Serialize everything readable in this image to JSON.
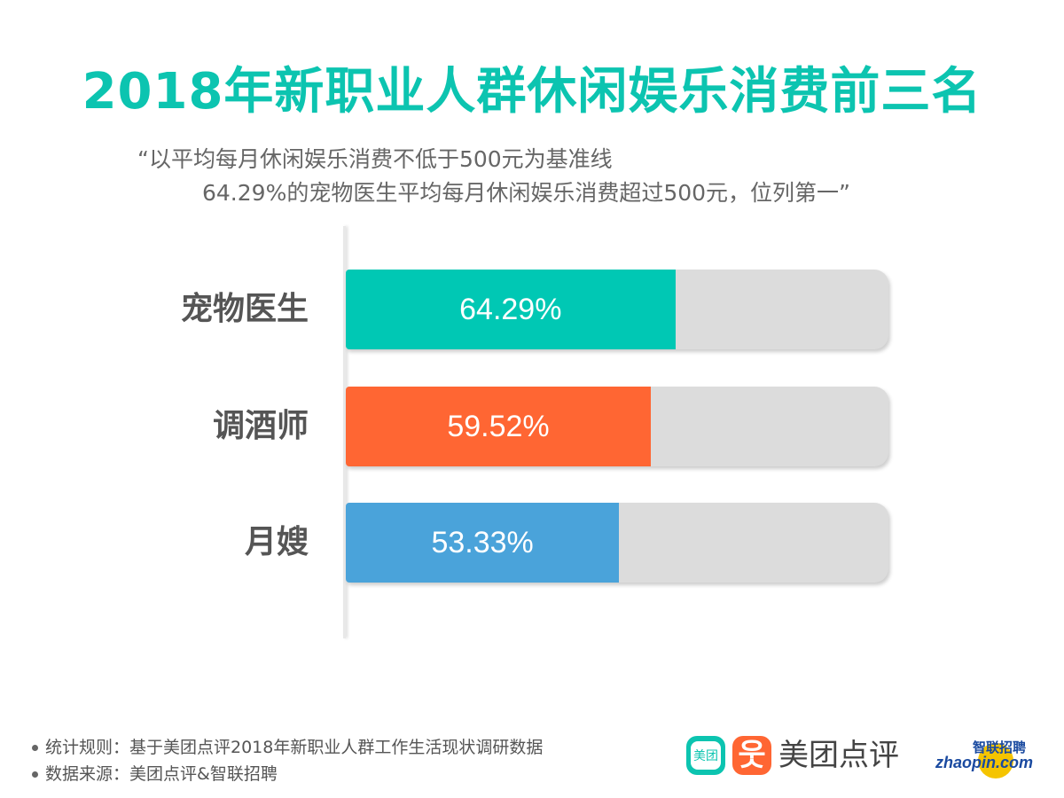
{
  "title": "2018年新职业人群休闲娱乐消费前三名",
  "subtitle": {
    "line1": "“以平均每月休闲娱乐消费不低于500元为基准线",
    "line2": "64.29%的宠物医生平均每月休闲娱乐消费超过500元，位列第一”"
  },
  "chart_data": {
    "type": "bar",
    "orientation": "horizontal",
    "categories": [
      "宠物医生",
      "调酒师",
      "月嫂"
    ],
    "values": [
      64.29,
      59.52,
      53.33
    ],
    "value_labels": [
      "64.29%",
      "59.52%",
      "53.33%"
    ],
    "colors": [
      "#00c8b4",
      "#ff6633",
      "#4aa3da"
    ],
    "track_color": "#dcdcdc",
    "grid": false
  },
  "footer": {
    "notes": [
      "统计规则：基于美团点评2018年新职业人群工作生活现状调研数据",
      "数据来源：美团点评&智联招聘"
    ]
  },
  "logos": {
    "meituan": "美团",
    "dianping_icon": "person-icon",
    "meituan_dianping": "美团点评",
    "zhaopin_cn": "智联招聘",
    "zhaopin_en": "zhaopin.com"
  }
}
